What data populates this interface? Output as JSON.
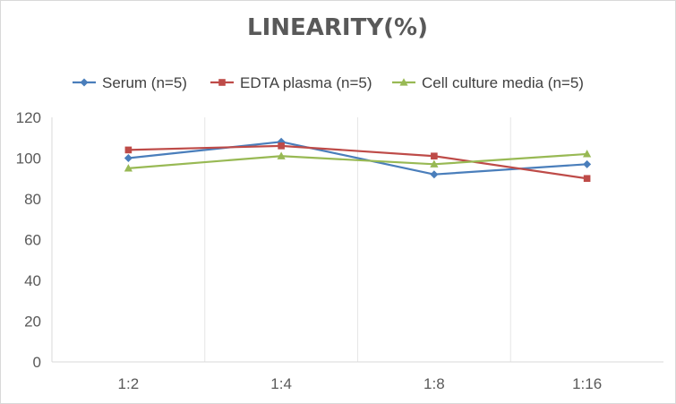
{
  "chart_data": {
    "type": "line",
    "title": "LINEARITY(%)",
    "categories": [
      "1:2",
      "1:4",
      "1:8",
      "1:16"
    ],
    "series": [
      {
        "name": "Serum (n=5)",
        "values": [
          100,
          108,
          92,
          97
        ],
        "color": "#4a7ebb",
        "marker": "diamond"
      },
      {
        "name": "EDTA plasma (n=5)",
        "values": [
          104,
          106,
          101,
          90
        ],
        "color": "#be4b48",
        "marker": "square"
      },
      {
        "name": "Cell culture media (n=5)",
        "values": [
          95,
          101,
          97,
          102
        ],
        "color": "#98b954",
        "marker": "triangle"
      }
    ],
    "ylim": [
      0,
      120
    ],
    "yticks": [
      0,
      20,
      40,
      60,
      80,
      100,
      120
    ],
    "grid": "vertical category dividers",
    "legend_position": "top"
  }
}
